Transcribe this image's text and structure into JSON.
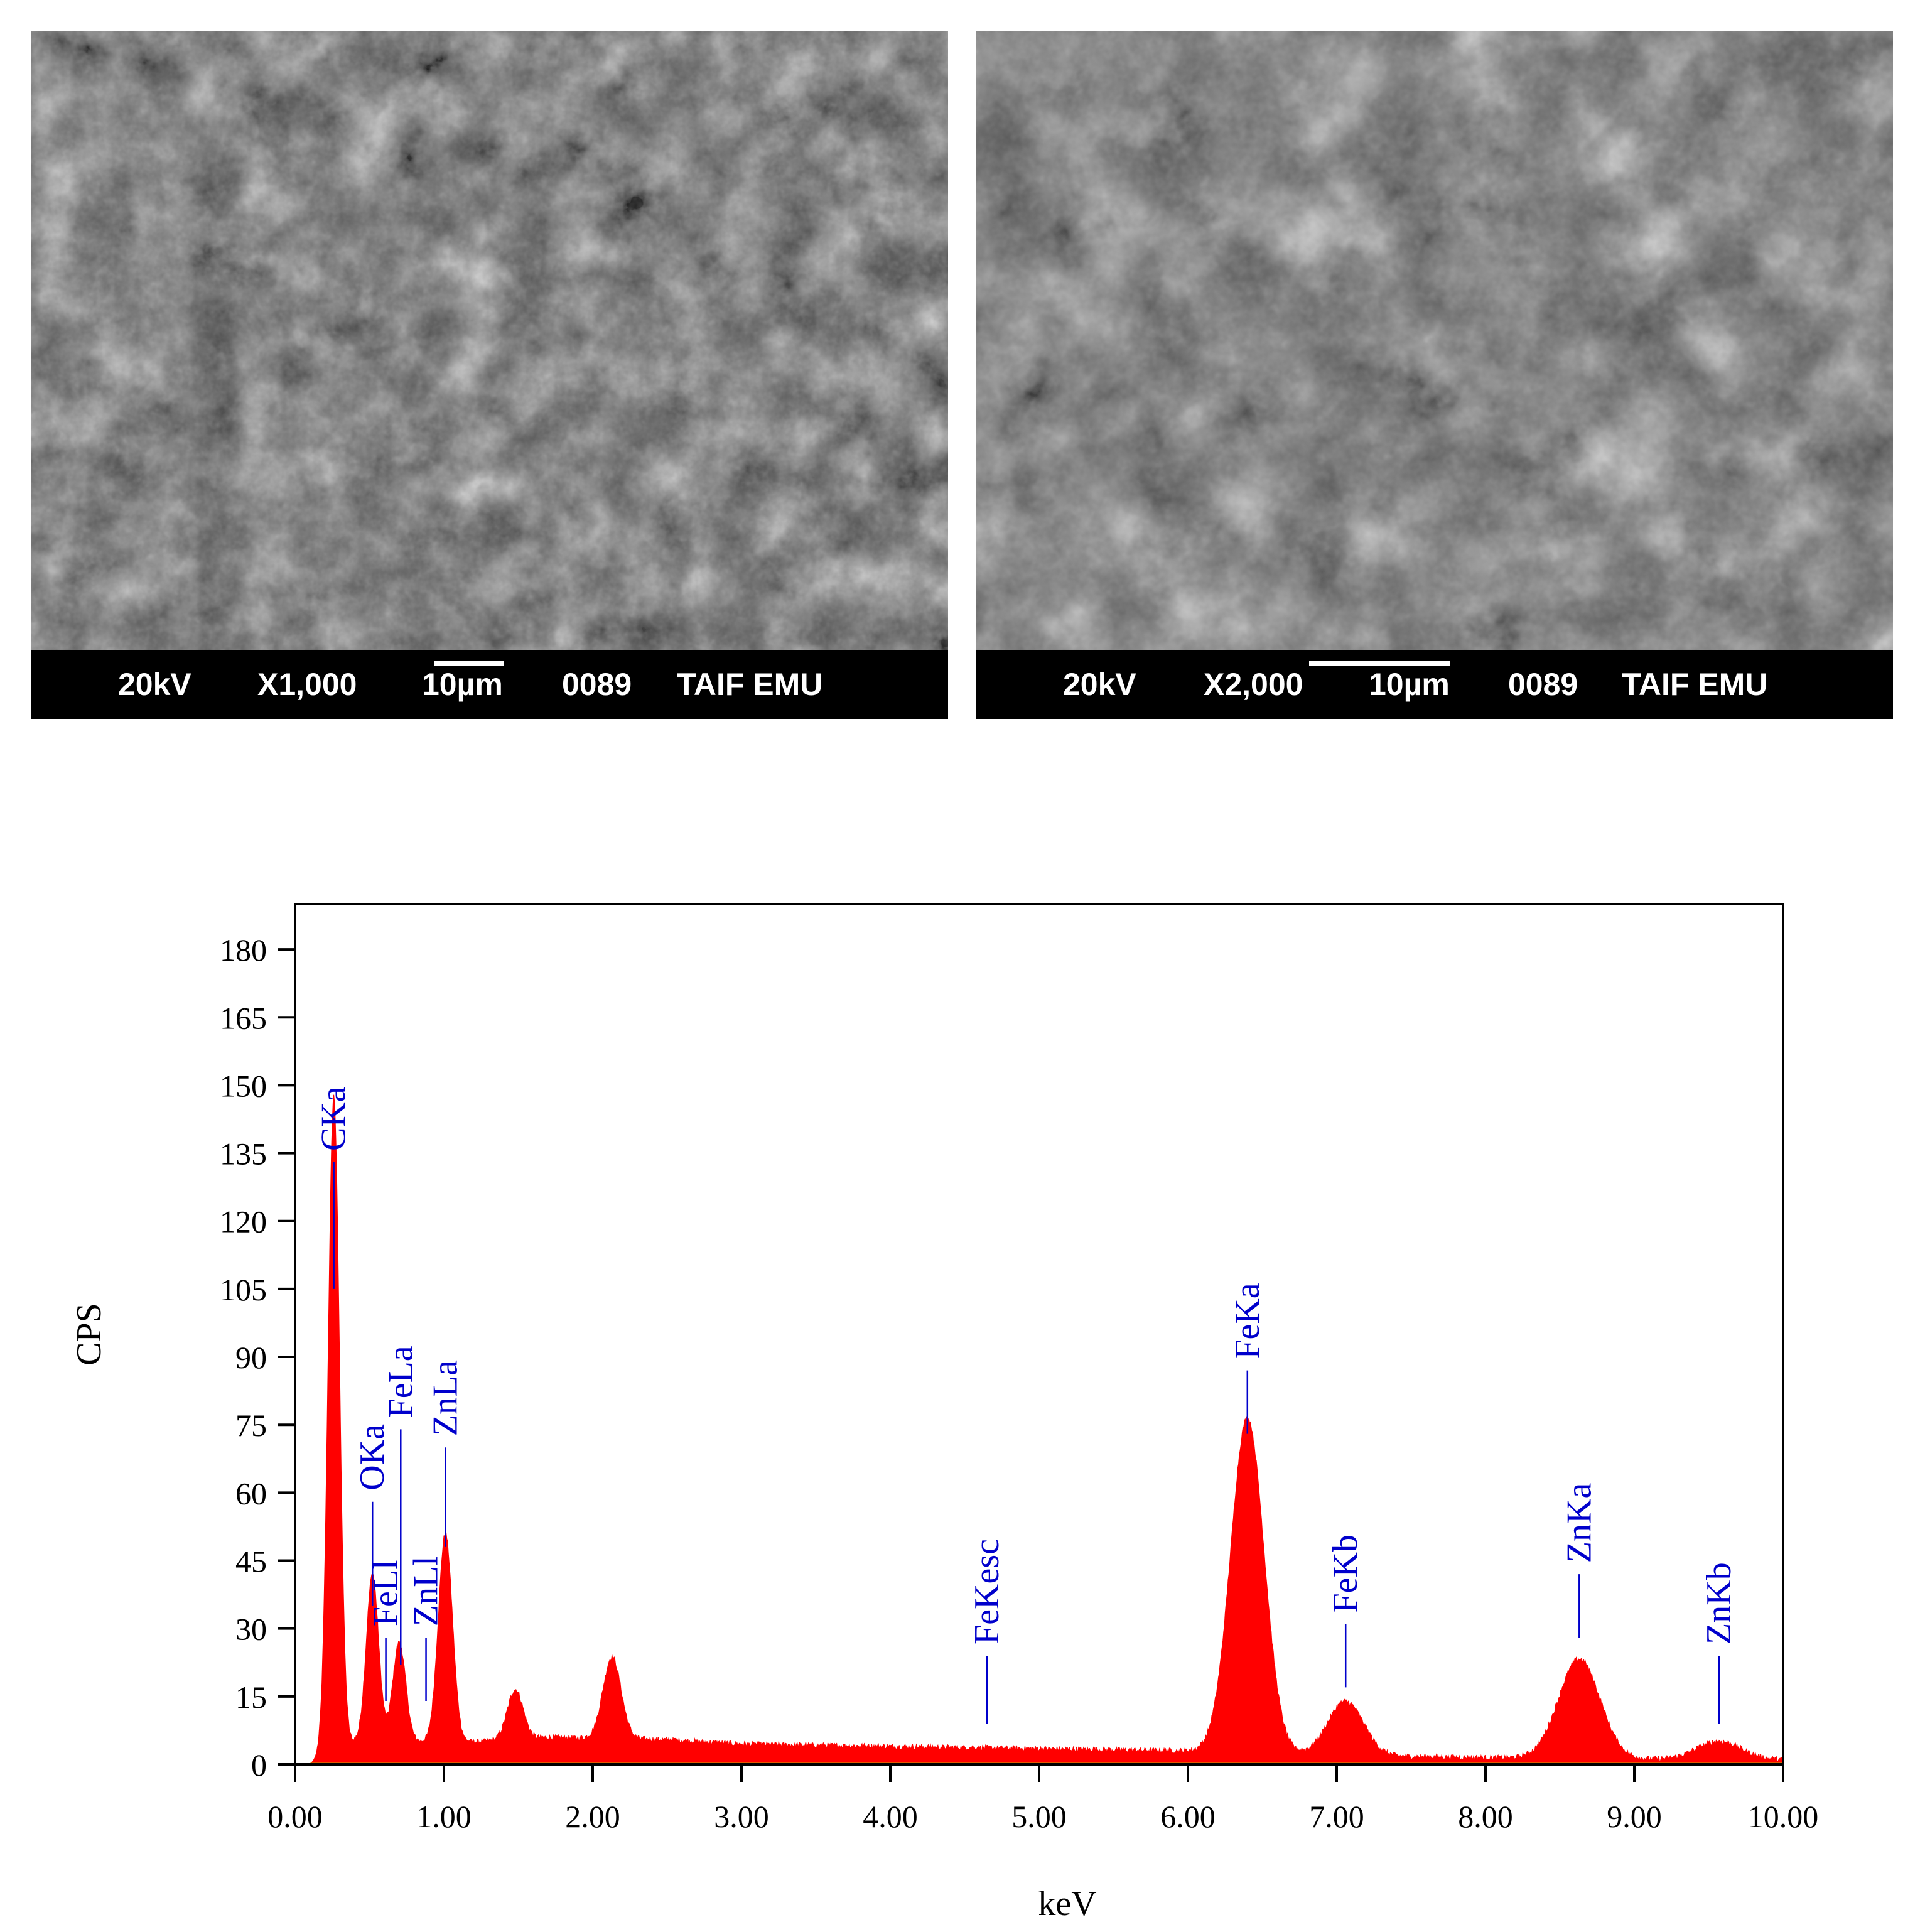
{
  "micrographs": [
    {
      "voltage": "20kV",
      "magnification": "X1,000",
      "scale": "10µm",
      "frame": "0089",
      "lab": "TAIF EMU"
    },
    {
      "voltage": "20kV",
      "magnification": "X2,000",
      "scale": "10µm",
      "frame": "0089",
      "lab": "TAIF EMU"
    }
  ],
  "chart_data": {
    "type": "area",
    "title": "",
    "xlabel": "keV",
    "ylabel": "CPS",
    "xlim": [
      0,
      10
    ],
    "ylim": [
      0,
      190
    ],
    "xticks": [
      "0.00",
      "1.00",
      "2.00",
      "3.00",
      "4.00",
      "5.00",
      "6.00",
      "7.00",
      "8.00",
      "9.00",
      "10.00"
    ],
    "yticks": [
      "0",
      "15",
      "30",
      "45",
      "60",
      "75",
      "90",
      "105",
      "120",
      "135",
      "150",
      "165",
      "180"
    ],
    "grid": false,
    "legend": "none",
    "series_color": "#ff0000",
    "label_color": "#0000cc",
    "baseline_color": "#c8b400",
    "peaks": [
      {
        "label": "CKa",
        "energy": 0.26,
        "cps": 144
      },
      {
        "label": "OKa",
        "energy": 0.52,
        "cps": 37
      },
      {
        "label": "FeLa",
        "energy": 0.7,
        "cps": 22
      },
      {
        "label": "ZnLa",
        "energy": 1.01,
        "cps": 46
      },
      {
        "label": "",
        "energy": 1.48,
        "cps": 11
      },
      {
        "label": "",
        "energy": 2.13,
        "cps": 18
      },
      {
        "label": "FeKa",
        "energy": 6.4,
        "cps": 74
      },
      {
        "label": "FeKb",
        "energy": 7.06,
        "cps": 12
      },
      {
        "label": "ZnKa",
        "energy": 8.63,
        "cps": 22
      },
      {
        "label": "ZnKb",
        "energy": 9.57,
        "cps": 4
      }
    ],
    "background": [
      [
        0.1,
        0
      ],
      [
        0.2,
        3
      ],
      [
        0.4,
        5
      ],
      [
        1.2,
        5
      ],
      [
        1.7,
        6
      ],
      [
        2.5,
        5.5
      ],
      [
        3.0,
        4.5
      ],
      [
        4.0,
        4
      ],
      [
        5.0,
        3.5
      ],
      [
        6.0,
        3
      ],
      [
        7.0,
        2
      ],
      [
        8.0,
        1.5
      ],
      [
        9.0,
        1.2
      ],
      [
        10.0,
        1
      ]
    ],
    "line_markers": [
      {
        "label": "CKa",
        "energy": 0.26,
        "top": 133,
        "bottom": 105
      },
      {
        "label": "OKa",
        "energy": 0.52,
        "top": 58,
        "bottom": 35
      },
      {
        "label": "FeLl",
        "energy": 0.61,
        "top": 28,
        "bottom": 14
      },
      {
        "label": "FeLa",
        "energy": 0.71,
        "top": 74,
        "bottom": 22
      },
      {
        "label": "ZnLl",
        "energy": 0.88,
        "top": 28,
        "bottom": 14
      },
      {
        "label": "ZnLa",
        "energy": 1.01,
        "top": 70,
        "bottom": 48
      },
      {
        "label": "FeKesc",
        "energy": 4.65,
        "top": 24,
        "bottom": 9
      },
      {
        "label": "FeKa",
        "energy": 6.4,
        "top": 87,
        "bottom": 73
      },
      {
        "label": "FeKb",
        "energy": 7.06,
        "top": 31,
        "bottom": 17
      },
      {
        "label": "ZnKa",
        "energy": 8.63,
        "top": 42,
        "bottom": 28
      },
      {
        "label": "ZnKb",
        "energy": 9.57,
        "top": 24,
        "bottom": 9
      }
    ]
  }
}
